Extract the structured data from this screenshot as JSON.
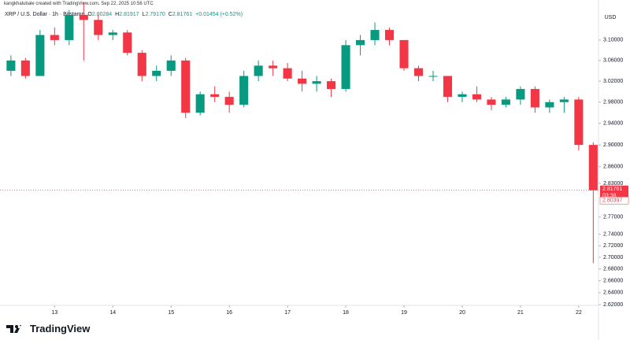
{
  "chart_data": {
    "type": "candlestick",
    "attribution": "kangkhalubale created with TradingView.com, Sep 22, 2025 10:56 UTC",
    "title": "XRP / U.S. Dollar · 1h · Bitstamp",
    "ohlc_legend": [
      {
        "label": "O",
        "value": "2.80284"
      },
      {
        "label": "H",
        "value": "2.81917"
      },
      {
        "label": "L",
        "value": "2.79170"
      },
      {
        "label": "C",
        "value": "2.81761"
      }
    ],
    "change": "+0.01454 (+0.52%)",
    "currency": "USD",
    "logo": "TradingView",
    "x": [
      12.25,
      12.5,
      12.75,
      13,
      13.25,
      13.5,
      13.75,
      14,
      14.25,
      14.5,
      14.75,
      15,
      15.25,
      15.5,
      15.75,
      16,
      16.25,
      16.5,
      16.75,
      17,
      17.25,
      17.5,
      17.75,
      18,
      18.25,
      18.5,
      18.75,
      19,
      19.25,
      19.5,
      19.75,
      20,
      20.25,
      20.5,
      20.75,
      21,
      21.25,
      21.5,
      21.75,
      22,
      22.25
    ],
    "open": [
      3.04,
      3.06,
      3.03,
      3.11,
      3.1,
      3.15,
      3.14,
      3.11,
      3.115,
      3.075,
      3.03,
      3.04,
      3.06,
      2.96,
      2.995,
      2.99,
      2.975,
      3.03,
      3.05,
      3.045,
      3.025,
      3.015,
      3.02,
      3.005,
      3.09,
      3.1,
      3.12,
      3.1,
      3.045,
      3.03,
      3.03,
      2.99,
      2.995,
      2.985,
      2.975,
      2.985,
      3.005,
      2.97,
      2.98,
      2.985,
      2.9
    ],
    "high": [
      3.07,
      3.065,
      3.12,
      3.125,
      3.16,
      3.175,
      3.15,
      3.12,
      3.12,
      3.08,
      3.05,
      3.07,
      3.065,
      3.0,
      3.01,
      3.0,
      3.04,
      3.06,
      3.06,
      3.055,
      3.04,
      3.03,
      3.025,
      3.1,
      3.11,
      3.135,
      3.125,
      3.1,
      3.05,
      3.04,
      3.03,
      3.0,
      3.01,
      2.99,
      2.99,
      3.01,
      3.01,
      2.985,
      2.99,
      2.99,
      2.905
    ],
    "low": [
      3.03,
      3.025,
      3.03,
      3.09,
      3.09,
      3.06,
      3.1,
      3.1,
      3.07,
      3.02,
      3.02,
      3.03,
      2.95,
      2.955,
      2.98,
      2.96,
      2.97,
      3.02,
      3.03,
      3.02,
      3.0,
      3.0,
      2.99,
      3.0,
      3.07,
      3.09,
      3.09,
      3.04,
      3.02,
      3.02,
      2.98,
      2.98,
      2.98,
      2.965,
      2.97,
      2.975,
      2.96,
      2.96,
      2.96,
      2.89,
      2.69
    ],
    "close": [
      3.06,
      3.03,
      3.11,
      3.1,
      3.15,
      3.14,
      3.11,
      3.115,
      3.075,
      3.03,
      3.04,
      3.06,
      2.96,
      2.995,
      2.99,
      2.975,
      3.03,
      3.05,
      3.045,
      3.025,
      3.015,
      3.02,
      3.005,
      3.09,
      3.1,
      3.12,
      3.1,
      3.045,
      3.03,
      3.03,
      2.99,
      2.995,
      2.985,
      2.975,
      2.985,
      3.005,
      2.97,
      2.98,
      2.985,
      2.9,
      2.81761
    ],
    "countdown": "03:38",
    "second_price": 2.80397,
    "up_color": "#089981",
    "down_color": "#f23645",
    "xlim": [
      12.13,
      22.34
    ],
    "xticks": [
      13,
      14,
      15,
      16,
      17,
      18,
      19,
      20,
      21,
      22
    ],
    "ylim": [
      2.62,
      3.18
    ],
    "log_scale": true,
    "yticks": [
      {
        "value": 3.1,
        "label": "3.10000"
      },
      {
        "value": 3.06,
        "label": "3.06000"
      },
      {
        "value": 3.02,
        "label": "3.02000"
      },
      {
        "value": 2.98,
        "label": "2.98000"
      },
      {
        "value": 2.94,
        "label": "2.94000"
      },
      {
        "value": 2.9,
        "label": "2.90000"
      },
      {
        "value": 2.86,
        "label": "2.86000"
      },
      {
        "value": 2.83,
        "label": "2.83000"
      },
      {
        "value": 2.77,
        "label": "2.77000"
      },
      {
        "value": 2.74,
        "label": "2.74000"
      },
      {
        "value": 2.72,
        "label": "2.72000"
      },
      {
        "value": 2.7,
        "label": "2.70000"
      },
      {
        "value": 2.68,
        "label": "2.68000"
      },
      {
        "value": 2.66,
        "label": "2.66000"
      },
      {
        "value": 2.64,
        "label": "2.64000"
      },
      {
        "value": 2.62,
        "label": "2.62000"
      }
    ]
  }
}
